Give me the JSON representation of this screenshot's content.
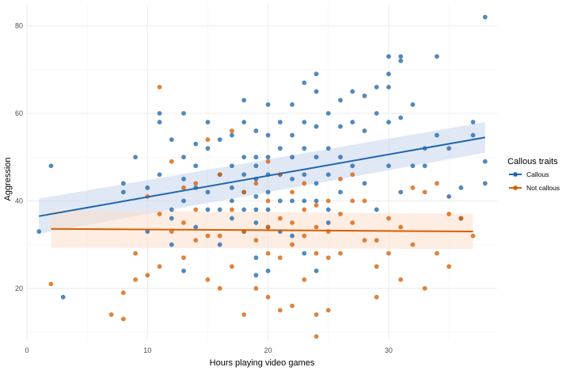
{
  "chart_data": {
    "type": "scatter",
    "title": "",
    "xlabel": "Hours playing video games",
    "ylabel": "Aggression",
    "xlim": [
      0,
      39
    ],
    "ylim": [
      8,
      85
    ],
    "xticks": [
      0,
      10,
      20,
      30
    ],
    "yticks": [
      20,
      40,
      60,
      80
    ],
    "grid": true,
    "legend": {
      "title": "Callous traits",
      "position": "right"
    },
    "series": [
      {
        "name": "Callous",
        "color": "#2166ac",
        "x": [
          1,
          2,
          3,
          8,
          8,
          9,
          10,
          10,
          11,
          11,
          11,
          12,
          12,
          12,
          12,
          13,
          13,
          13,
          13,
          13,
          14,
          14,
          14,
          14,
          15,
          15,
          15,
          15,
          16,
          16,
          16,
          16,
          17,
          17,
          17,
          17,
          17,
          18,
          18,
          18,
          18,
          18,
          18,
          18,
          19,
          19,
          19,
          19,
          19,
          19,
          19,
          19,
          19,
          20,
          20,
          20,
          20,
          20,
          20,
          20,
          20,
          21,
          21,
          21,
          21,
          21,
          22,
          22,
          22,
          22,
          22,
          22,
          23,
          23,
          23,
          23,
          23,
          23,
          24,
          24,
          24,
          24,
          24,
          24,
          24,
          25,
          25,
          25,
          25,
          25,
          26,
          26,
          26,
          26,
          27,
          27,
          27,
          28,
          28,
          28,
          29,
          29,
          29,
          30,
          30,
          30,
          30,
          30,
          31,
          31,
          31,
          31,
          32,
          32,
          33,
          33,
          34,
          34,
          35,
          35,
          36,
          36,
          37,
          37,
          38,
          38,
          38
        ],
        "y": [
          33,
          48,
          18,
          44,
          42,
          50,
          43,
          33,
          60,
          58,
          46,
          54,
          38,
          36,
          30,
          60,
          50,
          45,
          40,
          24,
          53,
          48,
          43,
          34,
          58,
          52,
          42,
          38,
          54,
          46,
          38,
          30,
          55,
          48,
          43,
          40,
          36,
          63,
          58,
          50,
          46,
          42,
          38,
          33,
          56,
          50,
          48,
          45,
          41,
          38,
          35,
          27,
          23,
          62,
          55,
          50,
          46,
          42,
          38,
          34,
          24,
          58,
          52,
          46,
          40,
          33,
          62,
          55,
          50,
          45,
          40,
          32,
          67,
          58,
          52,
          46,
          40,
          28,
          69,
          65,
          57,
          50,
          44,
          40,
          24,
          60,
          52,
          46,
          38,
          35,
          63,
          57,
          50,
          42,
          65,
          58,
          48,
          64,
          56,
          44,
          66,
          60,
          38,
          73,
          69,
          66,
          58,
          48,
          73,
          72,
          59,
          42,
          62,
          48,
          48,
          52,
          73,
          55,
          52,
          41,
          43,
          36,
          58,
          55,
          82,
          49,
          44
        ]
      },
      {
        "name": "Not callous",
        "color": "#d95f02",
        "x": [
          2,
          7,
          8,
          8,
          9,
          9,
          10,
          10,
          11,
          11,
          11,
          12,
          12,
          13,
          13,
          13,
          14,
          14,
          14,
          15,
          15,
          15,
          16,
          16,
          16,
          17,
          17,
          17,
          18,
          18,
          18,
          19,
          19,
          19,
          20,
          20,
          20,
          20,
          20,
          21,
          21,
          21,
          21,
          22,
          22,
          22,
          22,
          23,
          23,
          23,
          23,
          24,
          24,
          24,
          24,
          24,
          25,
          25,
          25,
          25,
          26,
          26,
          26,
          27,
          27,
          27,
          28,
          28,
          29,
          29,
          29,
          30,
          30,
          31,
          31,
          32,
          32,
          33,
          33,
          34,
          34,
          35,
          35,
          36,
          37
        ],
        "y": [
          21,
          14,
          19,
          13,
          28,
          22,
          41,
          23,
          66,
          37,
          25,
          49,
          33,
          43,
          35,
          27,
          44,
          38,
          31,
          54,
          32,
          22,
          46,
          32,
          20,
          56,
          38,
          25,
          42,
          33,
          14,
          44,
          31,
          20,
          49,
          40,
          34,
          28,
          18,
          46,
          36,
          27,
          15,
          42,
          35,
          30,
          16,
          44,
          38,
          32,
          22,
          39,
          34,
          28,
          14,
          9,
          40,
          33,
          27,
          15,
          45,
          37,
          28,
          46,
          40,
          35,
          40,
          31,
          31,
          25,
          18,
          36,
          28,
          34,
          22,
          43,
          30,
          42,
          20,
          44,
          28,
          37,
          25,
          36,
          32
        ]
      }
    ],
    "trend_lines": [
      {
        "name": "Callous",
        "color": "#2166ac",
        "band_color": "#c6d6ee",
        "x": [
          1,
          38
        ],
        "y": [
          36.5,
          54.5
        ],
        "ci_lower": [
          32.5,
          51.0
        ],
        "ci_upper": [
          40.5,
          58.0
        ]
      },
      {
        "name": "Not callous",
        "color": "#d95f02",
        "band_color": "#fbdfcc",
        "x": [
          2,
          37
        ],
        "y": [
          33.6,
          33.0
        ],
        "ci_lower": [
          29.3,
          29.0
        ],
        "ci_upper": [
          37.9,
          37.0
        ]
      }
    ]
  }
}
